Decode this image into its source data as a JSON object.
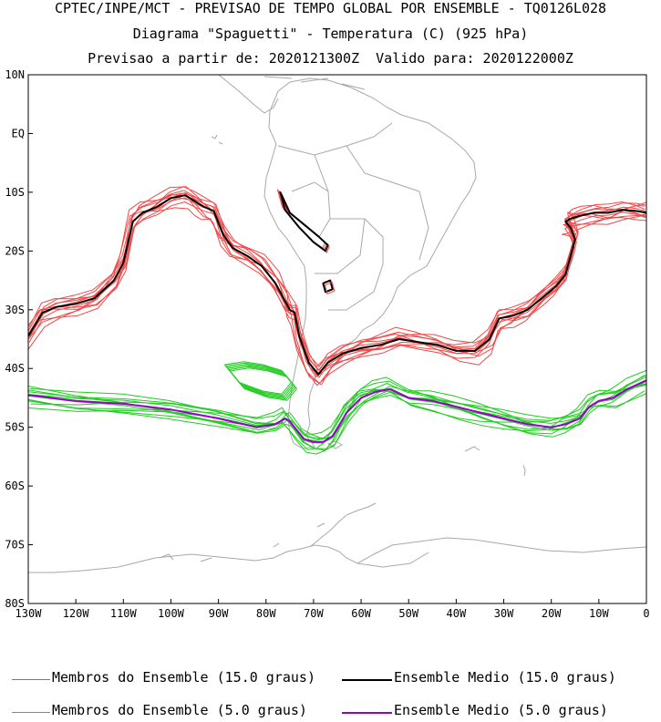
{
  "titles": {
    "line1": "CPTEC/INPE/MCT - PREVISAO DE TEMPO GLOBAL POR ENSEMBLE - TQ0126L028",
    "line2": "Diagrama \"Spaguetti\" - Temperatura (C) (925 hPa)",
    "line3": "Previsao a partir de: 2020121300Z  Valido para: 2020122000Z"
  },
  "legend": {
    "members_15": "Membros do Ensemble (15.0 graus)",
    "mean_15": "Ensemble Medio (15.0 graus)",
    "members_5": "Membros do Ensemble (5.0 graus)",
    "mean_5": "Ensemble Medio (5.0 graus)"
  },
  "colors": {
    "members_15": "#f04848",
    "mean_15": "#000000",
    "members_5": "#22cc22",
    "mean_5": "#9900cc",
    "coast": "#a8a8a8"
  },
  "chart_data": {
    "type": "line",
    "x_ticks": [
      "130W",
      "120W",
      "110W",
      "100W",
      "90W",
      "80W",
      "70W",
      "60W",
      "50W",
      "40W",
      "30W",
      "20W",
      "10W",
      "0"
    ],
    "y_ticks": [
      "10N",
      "EQ",
      "10S",
      "20S",
      "30S",
      "40S",
      "50S",
      "60S",
      "70S",
      "80S"
    ],
    "xlim": [
      -130,
      0
    ],
    "ylim": [
      -80,
      10
    ],
    "series": [
      {
        "name": "Ensemble Medio (15.0 graus)",
        "key": "mean_15",
        "x": [
          -130,
          -127,
          -124,
          -120,
          -116,
          -112,
          -110,
          -108,
          -106,
          -103,
          -100,
          -97,
          -95,
          -93,
          -91,
          -89,
          -87,
          -84,
          -81,
          -78,
          -76,
          -75,
          -74,
          -73,
          -71,
          -69,
          -67,
          -64,
          -60,
          -56,
          -52,
          -48,
          -44,
          -40,
          -36,
          -33,
          -31,
          -28,
          -25,
          -22,
          -19,
          -17,
          -16,
          -15,
          -16,
          -17,
          -16,
          -14,
          -11,
          -8,
          -5,
          -2,
          0
        ],
        "y": [
          -34.5,
          -30.5,
          -29.5,
          -29,
          -28,
          -25,
          -22,
          -15,
          -13.5,
          -12.5,
          -11,
          -10.5,
          -11.5,
          -12.5,
          -13.2,
          -17.2,
          -19.5,
          -20.8,
          -22.5,
          -25.5,
          -28.5,
          -30,
          -30.5,
          -34.5,
          -39,
          -41,
          -39,
          -37.5,
          -36.5,
          -36,
          -35,
          -35.5,
          -36,
          -37,
          -37,
          -35,
          -31.5,
          -31,
          -30,
          -28,
          -26,
          -24,
          -21,
          -18,
          -16,
          -15,
          -14.5,
          -14,
          -13.5,
          -13.5,
          -13,
          -13.2,
          -13.5
        ]
      },
      {
        "name": "Ensemble Medio (5.0 graus)",
        "key": "mean_5",
        "x": [
          -130,
          -120,
          -110,
          -100,
          -90,
          -82,
          -78,
          -76,
          -75,
          -74,
          -72,
          -70,
          -68,
          -66,
          -63,
          -60,
          -57,
          -54,
          -50,
          -45,
          -40,
          -35,
          -30,
          -25,
          -20,
          -17,
          -14,
          -12,
          -10,
          -7,
          -4,
          0
        ],
        "y": [
          -44.5,
          -45.5,
          -46,
          -47,
          -48.5,
          -50,
          -49.5,
          -48.5,
          -49,
          -50,
          -52,
          -52.5,
          -52.5,
          -51.5,
          -47.5,
          -45,
          -44,
          -43.5,
          -45,
          -45.5,
          -46.5,
          -47.5,
          -48.5,
          -49.5,
          -50,
          -49.5,
          -48.5,
          -46.5,
          -45.5,
          -45,
          -43.5,
          -42
        ]
      }
    ]
  }
}
